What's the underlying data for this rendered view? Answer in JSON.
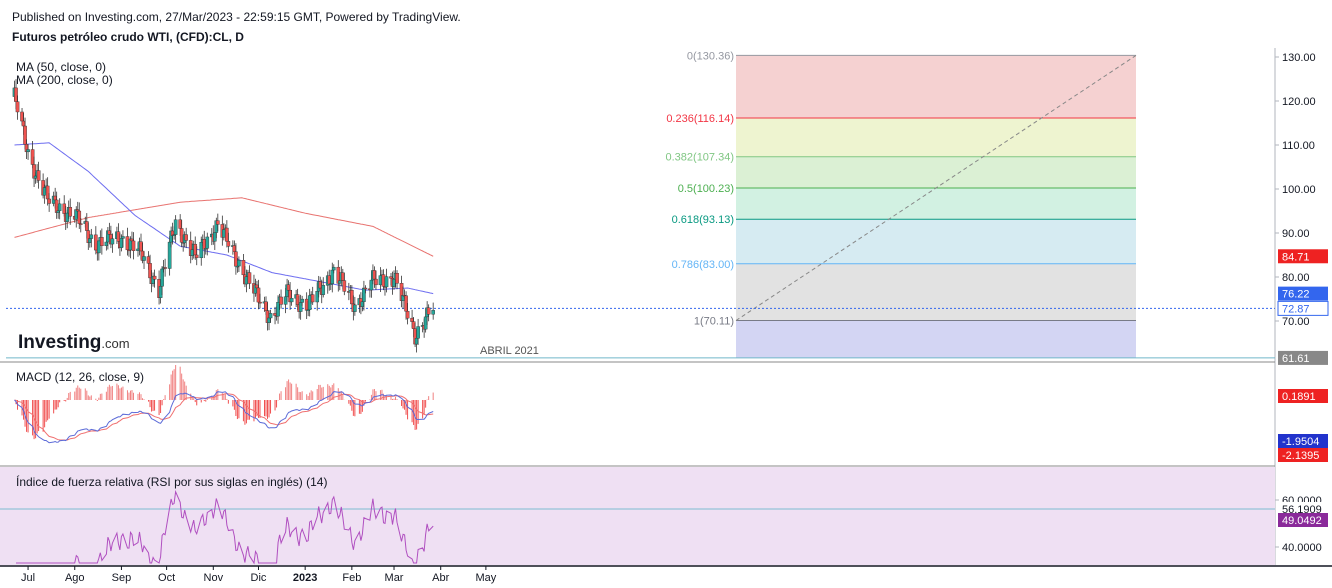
{
  "header": {
    "published": "Published on Investing.com, 27/Mar/2023 - 22:59:15 GMT, Powered by TradingView.",
    "symbol": "Futuros petróleo crudo WTI, (CFD):CL, D"
  },
  "indicators": {
    "ma50": "MA (50, close, 0)",
    "ma200": "MA (200, close, 0)",
    "macd_title": "MACD (12, 26, close, 9)",
    "rsi_title": "Índice de fuerza relativa (RSI por sus siglas en inglés) (14)"
  },
  "logo": {
    "brand": "Investing",
    "suffix": ".com"
  },
  "annotation": "ABRIL 2021",
  "colors": {
    "up": "#26a69a",
    "down": "#ef5350",
    "ma50": "#6d6df0",
    "ma200": "#e8726f",
    "macd": "#5c6bd8",
    "signal": "#f07070",
    "rsi": "#b04fc0",
    "rsi_band": "#efe0f3",
    "price_badge": "#3366ee",
    "ma200_badge": "#ee2222"
  },
  "chart_data": [
    {
      "type": "candlestick",
      "title": "Futuros petróleo crudo WTI, (CFD):CL, D",
      "x_labels": [
        "Jul",
        "Ago",
        "Sep",
        "Oct",
        "Nov",
        "Dic",
        "2023",
        "Feb",
        "Mar",
        "Abr",
        "May"
      ],
      "y_ticks": [
        "130.00",
        "120.00",
        "110.00",
        "100.00",
        "90.00",
        "80.00",
        "70.00"
      ],
      "ylim": [
        59.5,
        130.5
      ],
      "close_samples": [
        {
          "date": "2022-06-22",
          "close": 121.0
        },
        {
          "date": "2022-07-01",
          "close": 108.0
        },
        {
          "date": "2022-07-15",
          "close": 97.0
        },
        {
          "date": "2022-08-01",
          "close": 94.0
        },
        {
          "date": "2022-08-15",
          "close": 87.5
        },
        {
          "date": "2022-09-01",
          "close": 89.0
        },
        {
          "date": "2022-09-15",
          "close": 85.0
        },
        {
          "date": "2022-09-26",
          "close": 77.0
        },
        {
          "date": "2022-10-07",
          "close": 92.5
        },
        {
          "date": "2022-10-20",
          "close": 84.5
        },
        {
          "date": "2022-11-04",
          "close": 92.0
        },
        {
          "date": "2022-11-15",
          "close": 85.0
        },
        {
          "date": "2022-12-01",
          "close": 75.0
        },
        {
          "date": "2022-12-09",
          "close": 71.0
        },
        {
          "date": "2022-12-20",
          "close": 76.0
        },
        {
          "date": "2023-01-03",
          "close": 73.5
        },
        {
          "date": "2023-01-20",
          "close": 81.5
        },
        {
          "date": "2023-02-03",
          "close": 73.5
        },
        {
          "date": "2023-02-15",
          "close": 79.0
        },
        {
          "date": "2023-03-01",
          "close": 80.0
        },
        {
          "date": "2023-03-15",
          "close": 67.0
        },
        {
          "date": "2023-03-27",
          "close": 72.87
        }
      ],
      "ma50_samples": [
        {
          "date": "2022-06-22",
          "value": 110.0
        },
        {
          "date": "2022-07-15",
          "value": 110.5
        },
        {
          "date": "2022-08-10",
          "value": 104.0
        },
        {
          "date": "2022-09-10",
          "value": 94.0
        },
        {
          "date": "2022-10-10",
          "value": 87.0
        },
        {
          "date": "2022-11-10",
          "value": 85.0
        },
        {
          "date": "2022-12-10",
          "value": 81.0
        },
        {
          "date": "2023-01-10",
          "value": 79.0
        },
        {
          "date": "2023-02-10",
          "value": 77.0
        },
        {
          "date": "2023-03-10",
          "value": 77.5
        },
        {
          "date": "2023-03-27",
          "value": 76.22
        }
      ],
      "ma200_samples": [
        {
          "date": "2022-06-22",
          "value": 89.0
        },
        {
          "date": "2022-08-10",
          "value": 93.5
        },
        {
          "date": "2022-10-10",
          "value": 97.0
        },
        {
          "date": "2022-11-20",
          "value": 98.0
        },
        {
          "date": "2023-01-01",
          "value": 94.5
        },
        {
          "date": "2023-02-15",
          "value": 91.5
        },
        {
          "date": "2023-03-27",
          "value": 84.71
        }
      ],
      "fibonacci": [
        {
          "label": "0(130.36)",
          "value": 130.36,
          "color": "#9598a1"
        },
        {
          "label": "0.236(116.14)",
          "value": 116.14,
          "color": "#f23645"
        },
        {
          "label": "0.382(107.34)",
          "value": 107.34,
          "color": "#81c784"
        },
        {
          "label": "0.5(100.23)",
          "value": 100.23,
          "color": "#4caf50"
        },
        {
          "label": "0.618(93.13)",
          "value": 93.13,
          "color": "#089981"
        },
        {
          "label": "0.786(83.00)",
          "value": 83.0,
          "color": "#64b5f6"
        },
        {
          "label": "1(70.11)",
          "value": 70.11,
          "color": "#787b86"
        }
      ],
      "fib_fills": [
        "#f5d1d1",
        "#eef4d0",
        "#dbf0d4",
        "#d2f1e2",
        "#d6ebf2",
        "#e2e2e2",
        "#d3d5f3"
      ],
      "price_labels": [
        {
          "text": "84.71",
          "value": 84.71,
          "role": "ma200"
        },
        {
          "text": "76.22",
          "value": 76.22,
          "role": "ma50"
        },
        {
          "text": "72.87",
          "value": 72.87,
          "role": "price"
        },
        {
          "text": "61.61",
          "value": 61.61,
          "role": "level"
        }
      ]
    },
    {
      "type": "line",
      "title": "MACD (12, 26, close, 9)",
      "series": [
        {
          "name": "MACD",
          "latest": -1.9504
        },
        {
          "name": "signal",
          "latest": -2.1395
        },
        {
          "name": "histogram",
          "latest": 0.1891
        }
      ],
      "price_labels": [
        {
          "text": "0.1891",
          "role": "histogram"
        },
        {
          "text": "-1.9504",
          "role": "macd"
        },
        {
          "text": "-2.1395",
          "role": "signal"
        }
      ]
    },
    {
      "type": "line",
      "title": "Índice de fuerza relativa (RSI por sus siglas en inglés) (14)",
      "y_ticks": [
        "60.0000",
        "40.0000"
      ],
      "ylim": [
        35,
        70
      ],
      "band": [
        30,
        70
      ],
      "series": [
        {
          "name": "RSI",
          "latest": 49.0492
        }
      ],
      "price_labels": [
        {
          "text": "56.1909",
          "role": "level"
        },
        {
          "text": "49.0492",
          "role": "rsi"
        }
      ]
    }
  ]
}
